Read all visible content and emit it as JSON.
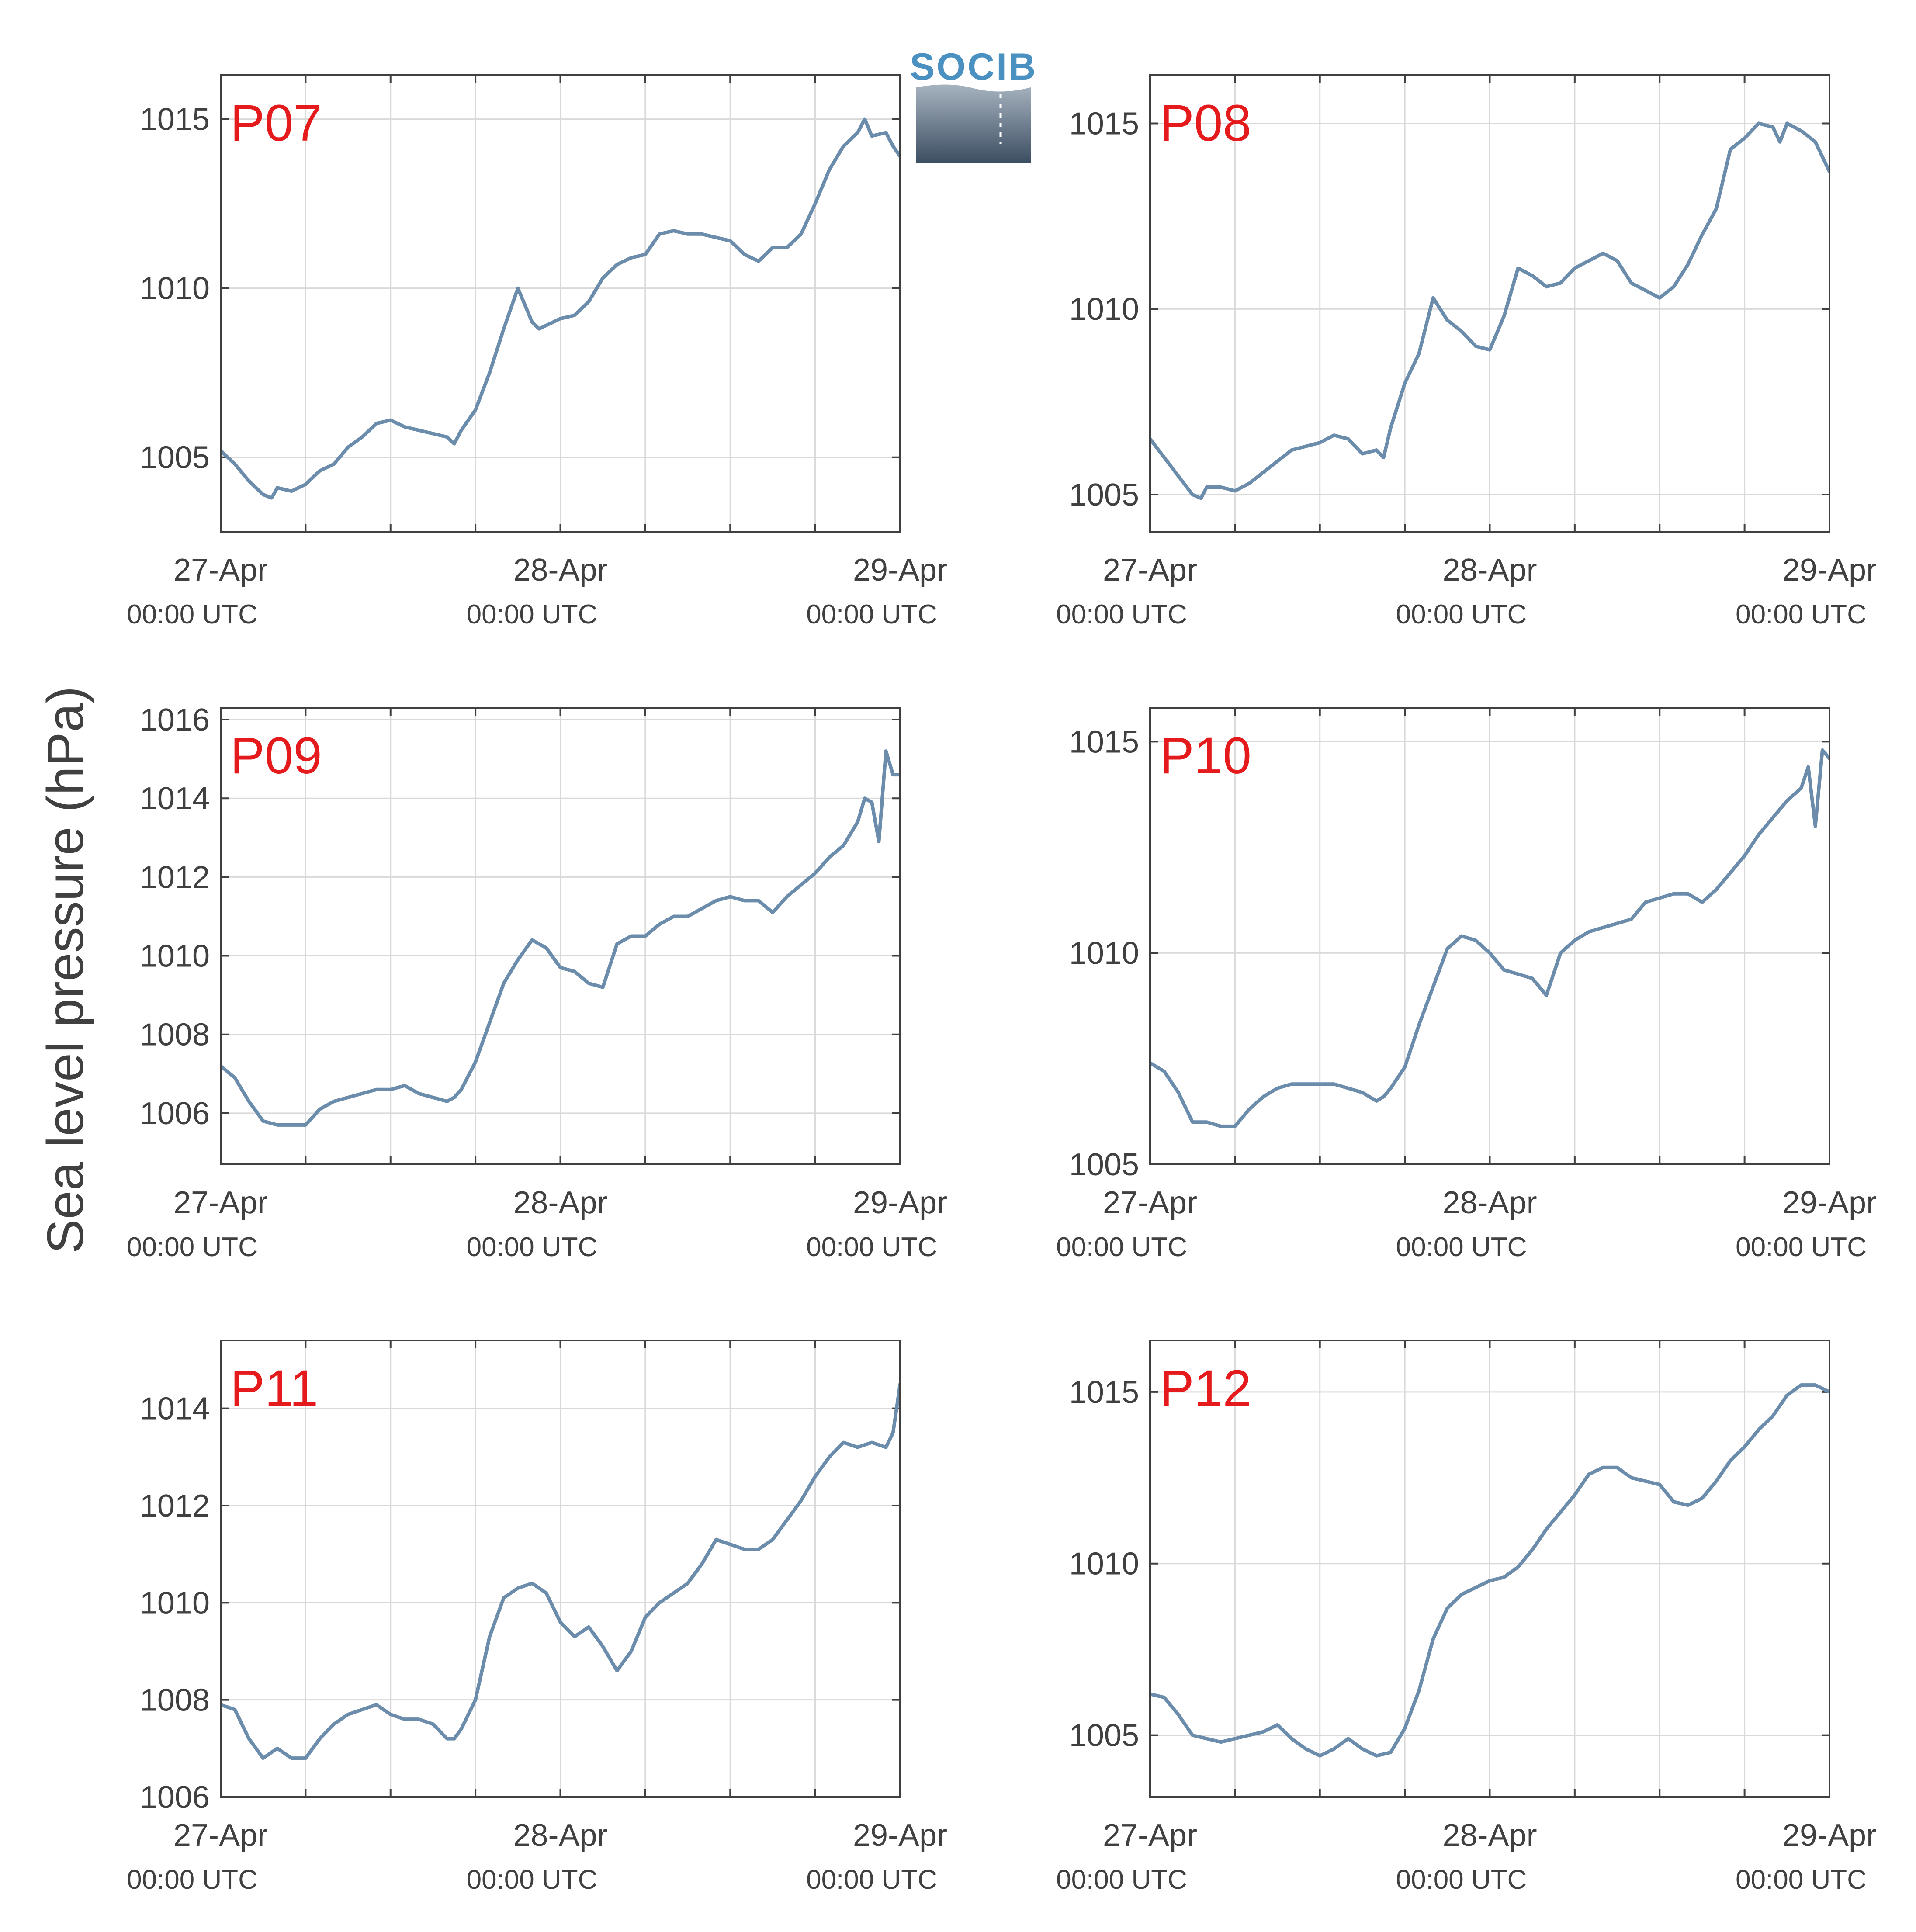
{
  "figure": {
    "ylabel": "Sea level pressure (hPa)",
    "logo_text": "SOCIB",
    "colors": {
      "line": "#6b8cab",
      "station_label": "#e41a1c",
      "grid": "#d9d9d9",
      "axis": "#404040"
    }
  },
  "chart_data": [
    {
      "type": "line",
      "station": "P07",
      "xlim": [
        0,
        48
      ],
      "ylim": [
        1002.8,
        1016.3
      ],
      "x_ticks": [
        {
          "x": 0,
          "label": "27-Apr",
          "sub": "00:00 UTC"
        },
        {
          "x": 24,
          "label": "28-Apr",
          "sub": "00:00 UTC"
        },
        {
          "x": 48,
          "label": "29-Apr",
          "sub": "00:00 UTC"
        }
      ],
      "x_minor": [
        6,
        12,
        18,
        30,
        36,
        42
      ],
      "y_ticks": [
        1005,
        1010,
        1015
      ],
      "series": [
        {
          "x": [
            0,
            1,
            2,
            3,
            3.6,
            4,
            5,
            6,
            7,
            8,
            9,
            10,
            11,
            12,
            13,
            14,
            15,
            16,
            16.5,
            17,
            18,
            19,
            20,
            21,
            22,
            22.5,
            23,
            24,
            25,
            26,
            27,
            28,
            29,
            30,
            31,
            32,
            33,
            34,
            35,
            36,
            37,
            38,
            39,
            40,
            40.5,
            41,
            42,
            43,
            44,
            45,
            45.5,
            46,
            47,
            47.5,
            48
          ],
          "y": [
            1005.2,
            1004.8,
            1004.3,
            1003.9,
            1003.8,
            1004.1,
            1004.0,
            1004.2,
            1004.6,
            1004.8,
            1005.3,
            1005.6,
            1006.0,
            1006.1,
            1005.9,
            1005.8,
            1005.7,
            1005.6,
            1005.4,
            1005.8,
            1006.4,
            1007.5,
            1008.8,
            1010.0,
            1009.0,
            1008.8,
            1008.9,
            1009.1,
            1009.2,
            1009.6,
            1010.3,
            1010.7,
            1010.9,
            1011.0,
            1011.6,
            1011.7,
            1011.6,
            1011.6,
            1011.5,
            1011.4,
            1011.0,
            1010.8,
            1011.2,
            1011.2,
            1011.4,
            1011.6,
            1012.5,
            1013.5,
            1014.2,
            1014.6,
            1015.0,
            1014.5,
            1014.6,
            1014.2,
            1013.9
          ]
        }
      ]
    },
    {
      "type": "line",
      "station": "P08",
      "xlim": [
        0,
        48
      ],
      "ylim": [
        1004.0,
        1016.3
      ],
      "x_ticks": [
        {
          "x": 0,
          "label": "27-Apr",
          "sub": "00:00 UTC"
        },
        {
          "x": 24,
          "label": "28-Apr",
          "sub": "00:00 UTC"
        },
        {
          "x": 48,
          "label": "29-Apr",
          "sub": "00:00 UTC"
        }
      ],
      "x_minor": [
        6,
        12,
        18,
        30,
        36,
        42
      ],
      "y_ticks": [
        1005,
        1010,
        1015
      ],
      "series": [
        {
          "x": [
            0,
            1,
            2,
            3,
            3.6,
            4,
            5,
            6,
            7,
            8,
            9,
            10,
            11,
            12,
            13,
            14,
            15,
            16,
            16.5,
            17,
            18,
            19,
            20,
            21,
            22,
            23,
            24,
            25,
            26,
            27,
            28,
            29,
            30,
            31,
            32,
            33,
            34,
            35,
            36,
            37,
            38,
            39,
            40,
            41,
            42,
            43,
            44,
            44.5,
            45,
            46,
            47,
            48
          ],
          "y": [
            1006.5,
            1006.0,
            1005.5,
            1005.0,
            1004.9,
            1005.2,
            1005.2,
            1005.1,
            1005.3,
            1005.6,
            1005.9,
            1006.2,
            1006.3,
            1006.4,
            1006.6,
            1006.5,
            1006.1,
            1006.2,
            1006.0,
            1006.8,
            1008.0,
            1008.8,
            1010.3,
            1009.7,
            1009.4,
            1009.0,
            1008.9,
            1009.8,
            1011.1,
            1010.9,
            1010.6,
            1010.7,
            1011.1,
            1011.3,
            1011.5,
            1011.3,
            1010.7,
            1010.5,
            1010.3,
            1010.6,
            1011.2,
            1012.0,
            1012.7,
            1014.3,
            1014.6,
            1015.0,
            1014.9,
            1014.5,
            1015.0,
            1014.8,
            1014.5,
            1013.7
          ]
        }
      ]
    },
    {
      "type": "line",
      "station": "P09",
      "xlim": [
        0,
        48
      ],
      "ylim": [
        1004.7,
        1016.3
      ],
      "x_ticks": [
        {
          "x": 0,
          "label": "27-Apr",
          "sub": "00:00 UTC"
        },
        {
          "x": 24,
          "label": "28-Apr",
          "sub": "00:00 UTC"
        },
        {
          "x": 48,
          "label": "29-Apr",
          "sub": "00:00 UTC"
        }
      ],
      "x_minor": [
        6,
        12,
        18,
        30,
        36,
        42
      ],
      "y_ticks": [
        1006,
        1008,
        1010,
        1012,
        1014,
        1016
      ],
      "series": [
        {
          "x": [
            0,
            1,
            2,
            3,
            4,
            5,
            6,
            7,
            8,
            9,
            10,
            11,
            12,
            13,
            14,
            15,
            16,
            16.5,
            17,
            18,
            19,
            20,
            21,
            22,
            23,
            24,
            25,
            26,
            27,
            28,
            29,
            30,
            31,
            32,
            33,
            34,
            35,
            36,
            37,
            38,
            39,
            40,
            41,
            42,
            43,
            44,
            45,
            45.5,
            46,
            46.5,
            47,
            47.5,
            48
          ],
          "y": [
            1007.2,
            1006.9,
            1006.3,
            1005.8,
            1005.7,
            1005.7,
            1005.7,
            1006.1,
            1006.3,
            1006.4,
            1006.5,
            1006.6,
            1006.6,
            1006.7,
            1006.5,
            1006.4,
            1006.3,
            1006.4,
            1006.6,
            1007.3,
            1008.3,
            1009.3,
            1009.9,
            1010.4,
            1010.2,
            1009.7,
            1009.6,
            1009.3,
            1009.2,
            1010.3,
            1010.5,
            1010.5,
            1010.8,
            1011.0,
            1011.0,
            1011.2,
            1011.4,
            1011.5,
            1011.4,
            1011.4,
            1011.1,
            1011.5,
            1011.8,
            1012.1,
            1012.5,
            1012.8,
            1013.4,
            1014.0,
            1013.9,
            1012.9,
            1015.2,
            1014.6,
            1014.6
          ]
        }
      ]
    },
    {
      "type": "line",
      "station": "P10",
      "xlim": [
        0,
        48
      ],
      "ylim": [
        1005.0,
        1015.8
      ],
      "x_ticks": [
        {
          "x": 0,
          "label": "27-Apr",
          "sub": "00:00 UTC"
        },
        {
          "x": 24,
          "label": "28-Apr",
          "sub": "00:00 UTC"
        },
        {
          "x": 48,
          "label": "29-Apr",
          "sub": "00:00 UTC"
        }
      ],
      "x_minor": [
        6,
        12,
        18,
        30,
        36,
        42
      ],
      "y_ticks": [
        1005,
        1010,
        1015
      ],
      "series": [
        {
          "x": [
            0,
            1,
            2,
            3,
            4,
            5,
            6,
            7,
            8,
            9,
            10,
            11,
            12,
            13,
            14,
            15,
            16,
            16.5,
            17,
            18,
            19,
            20,
            21,
            22,
            23,
            24,
            25,
            26,
            27,
            28,
            29,
            30,
            31,
            32,
            33,
            34,
            35,
            36,
            37,
            38,
            39,
            40,
            41,
            42,
            43,
            44,
            45,
            46,
            46.5,
            47,
            47.5,
            48
          ],
          "y": [
            1007.4,
            1007.2,
            1006.7,
            1006.0,
            1006.0,
            1005.9,
            1005.9,
            1006.3,
            1006.6,
            1006.8,
            1006.9,
            1006.9,
            1006.9,
            1006.9,
            1006.8,
            1006.7,
            1006.5,
            1006.6,
            1006.8,
            1007.3,
            1008.3,
            1009.2,
            1010.1,
            1010.4,
            1010.3,
            1010.0,
            1009.6,
            1009.5,
            1009.4,
            1009.0,
            1010.0,
            1010.3,
            1010.5,
            1010.6,
            1010.7,
            1010.8,
            1011.2,
            1011.3,
            1011.4,
            1011.4,
            1011.2,
            1011.5,
            1011.9,
            1012.3,
            1012.8,
            1013.2,
            1013.6,
            1013.9,
            1014.4,
            1013.0,
            1014.8,
            1014.6
          ]
        }
      ]
    },
    {
      "type": "line",
      "station": "P11",
      "xlim": [
        0,
        48
      ],
      "ylim": [
        1006.0,
        1015.4
      ],
      "x_ticks": [
        {
          "x": 0,
          "label": "27-Apr",
          "sub": "00:00 UTC"
        },
        {
          "x": 24,
          "label": "28-Apr",
          "sub": "00:00 UTC"
        },
        {
          "x": 48,
          "label": "29-Apr",
          "sub": "00:00 UTC"
        }
      ],
      "x_minor": [
        6,
        12,
        18,
        30,
        36,
        42
      ],
      "y_ticks": [
        1006,
        1008,
        1010,
        1012,
        1014
      ],
      "series": [
        {
          "x": [
            0,
            1,
            2,
            3,
            4,
            5,
            6,
            7,
            8,
            9,
            10,
            11,
            12,
            13,
            14,
            15,
            16,
            16.5,
            17,
            18,
            19,
            20,
            21,
            22,
            23,
            24,
            25,
            26,
            27,
            28,
            29,
            30,
            31,
            32,
            33,
            34,
            35,
            36,
            37,
            38,
            39,
            40,
            41,
            42,
            43,
            44,
            45,
            46,
            47,
            47.5,
            48
          ],
          "y": [
            1007.9,
            1007.8,
            1007.2,
            1006.8,
            1007.0,
            1006.8,
            1006.8,
            1007.2,
            1007.5,
            1007.7,
            1007.8,
            1007.9,
            1007.7,
            1007.6,
            1007.6,
            1007.5,
            1007.2,
            1007.2,
            1007.4,
            1008.0,
            1009.3,
            1010.1,
            1010.3,
            1010.4,
            1010.2,
            1009.6,
            1009.3,
            1009.5,
            1009.1,
            1008.6,
            1009.0,
            1009.7,
            1010.0,
            1010.2,
            1010.4,
            1010.8,
            1011.3,
            1011.2,
            1011.1,
            1011.1,
            1011.3,
            1011.7,
            1012.1,
            1012.6,
            1013.0,
            1013.3,
            1013.2,
            1013.3,
            1013.2,
            1013.5,
            1014.5
          ]
        }
      ]
    },
    {
      "type": "line",
      "station": "P12",
      "xlim": [
        0,
        48
      ],
      "ylim": [
        1003.2,
        1016.5
      ],
      "x_ticks": [
        {
          "x": 0,
          "label": "27-Apr",
          "sub": "00:00 UTC"
        },
        {
          "x": 24,
          "label": "28-Apr",
          "sub": "00:00 UTC"
        },
        {
          "x": 48,
          "label": "29-Apr",
          "sub": "00:00 UTC"
        }
      ],
      "x_minor": [
        6,
        12,
        18,
        30,
        36,
        42
      ],
      "y_ticks": [
        1005,
        1010,
        1015
      ],
      "series": [
        {
          "x": [
            0,
            1,
            2,
            3,
            4,
            5,
            6,
            7,
            8,
            9,
            10,
            11,
            12,
            13,
            14,
            15,
            16,
            17,
            18,
            19,
            20,
            21,
            22,
            23,
            24,
            25,
            26,
            27,
            28,
            29,
            30,
            31,
            32,
            33,
            34,
            35,
            36,
            37,
            38,
            39,
            40,
            41,
            42,
            43,
            44,
            45,
            46,
            47,
            48
          ],
          "y": [
            1006.2,
            1006.1,
            1005.6,
            1005.0,
            1004.9,
            1004.8,
            1004.9,
            1005.0,
            1005.1,
            1005.3,
            1004.9,
            1004.6,
            1004.4,
            1004.6,
            1004.9,
            1004.6,
            1004.4,
            1004.5,
            1005.2,
            1006.3,
            1007.8,
            1008.7,
            1009.1,
            1009.3,
            1009.5,
            1009.6,
            1009.9,
            1010.4,
            1011.0,
            1011.5,
            1012.0,
            1012.6,
            1012.8,
            1012.8,
            1012.5,
            1012.4,
            1012.3,
            1011.8,
            1011.7,
            1011.9,
            1012.4,
            1013.0,
            1013.4,
            1013.9,
            1014.3,
            1014.9,
            1015.2,
            1015.2,
            1015.0
          ]
        }
      ]
    }
  ]
}
